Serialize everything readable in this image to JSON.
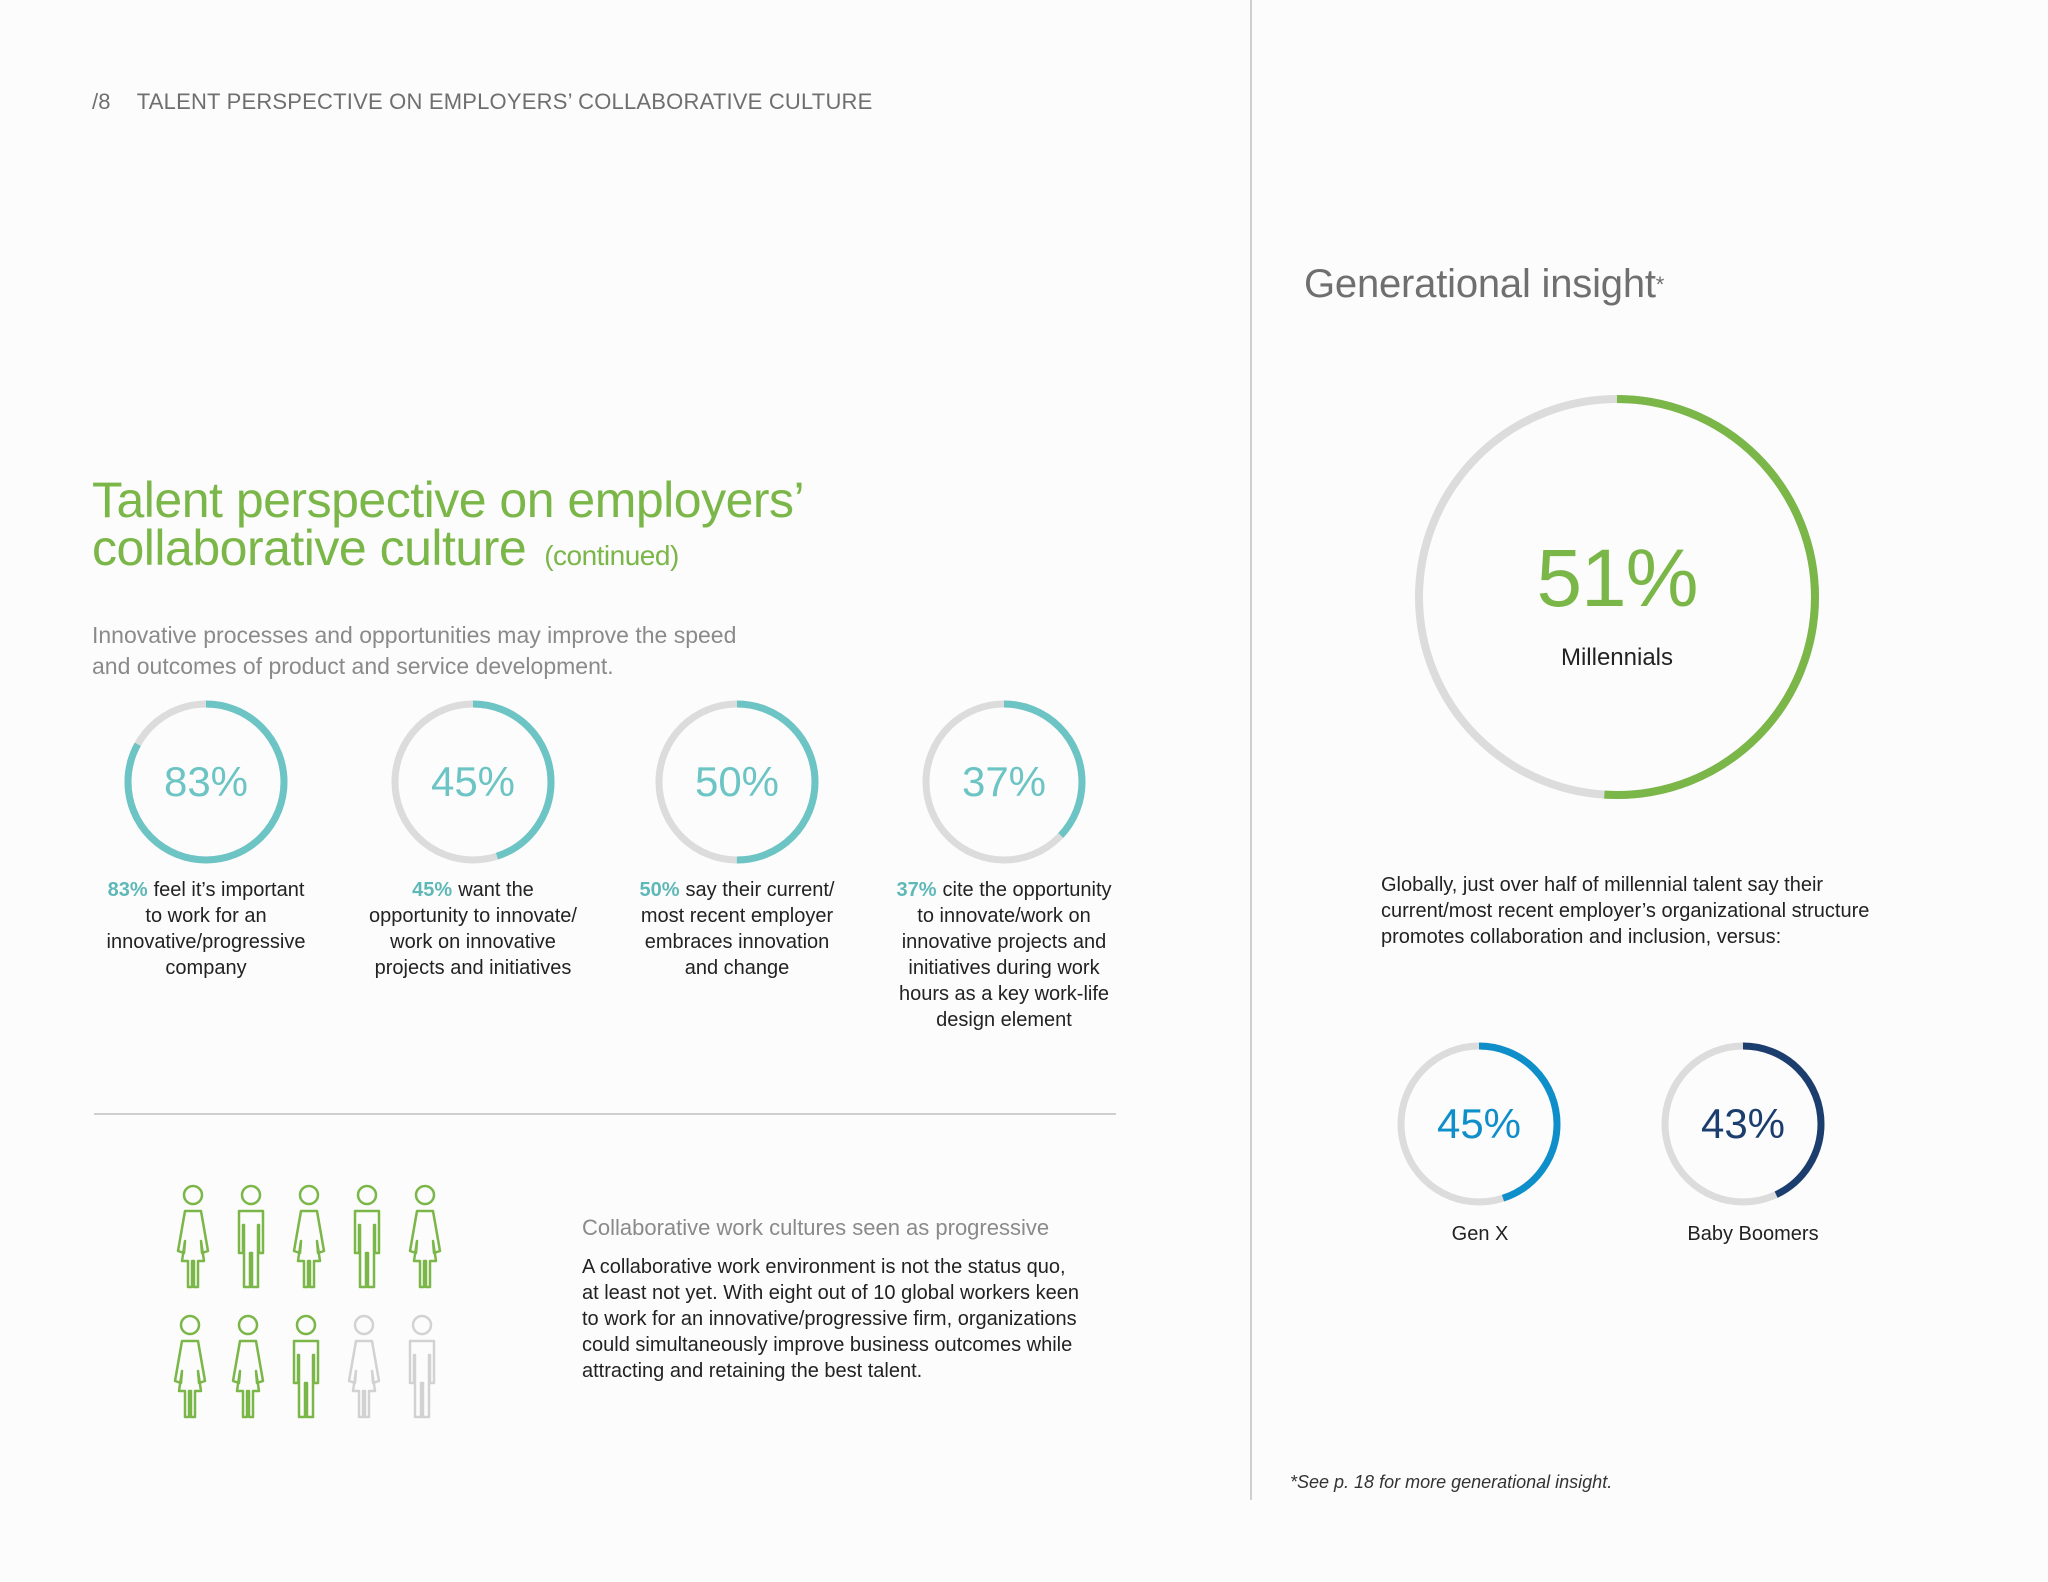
{
  "header": {
    "page_number": "/8",
    "section": "TALENT PERSPECTIVE ON EMPLOYERS’ COLLABORATIVE CULTURE"
  },
  "title": {
    "line1": "Talent perspective on employers’",
    "line2": "collaborative culture",
    "continued": "(continued)"
  },
  "intro": {
    "line1": "Innovative processes and opportunities may improve the speed",
    "line2": "and outcomes of product and service development."
  },
  "colors": {
    "teal": "#6cc4c4",
    "green": "#7ab648",
    "track": "#dcdcdc",
    "genx": "#0f8fc9",
    "boomers": "#1c3e6e",
    "inactive_figure": "#d2d2d2"
  },
  "stats": [
    {
      "pct": "83%",
      "value": 0.83,
      "lines": [
        "83% feel it’s important",
        "to work for an",
        "innovative/progressive",
        "company"
      ]
    },
    {
      "pct": "45%",
      "value": 0.45,
      "lines": [
        "45% want the",
        "opportunity to innovate/",
        "work on innovative",
        "projects and initiatives"
      ]
    },
    {
      "pct": "50%",
      "value": 0.5,
      "lines": [
        "50% say their current/",
        "most recent employer",
        "embraces innovation",
        "and change"
      ]
    },
    {
      "pct": "37%",
      "value": 0.37,
      "lines": [
        "37% cite the opportunity",
        "to innovate/work on",
        "innovative projects and",
        "initiatives during work",
        "hours as a key work-life",
        "design element"
      ]
    }
  ],
  "people": {
    "total": 10,
    "highlighted": 8,
    "icon": "person-icon"
  },
  "collab": {
    "title": "Collaborative work cultures seen as progressive",
    "lines": [
      "A collaborative work environment is not the status quo,",
      "at least not yet. With eight out of 10 global workers keen",
      "to work for an innovative/progressive firm, organizations",
      "could simultaneously improve business outcomes while",
      "attracting and retaining the best talent."
    ]
  },
  "generational": {
    "title": "Generational insight",
    "asterisk": "*",
    "main": {
      "pct": "51%",
      "value": 0.51,
      "label": "Millennials"
    },
    "body_lines": [
      "Globally, just over half of millennial talent say their",
      "current/most recent employer’s organizational structure",
      "promotes collaboration and inclusion, versus:"
    ],
    "compare": [
      {
        "pct": "45%",
        "value": 0.45,
        "label": "Gen X"
      },
      {
        "pct": "43%",
        "value": 0.43,
        "label": "Baby Boomers"
      }
    ],
    "footnote": "*See p. 18 for more generational insight."
  }
}
